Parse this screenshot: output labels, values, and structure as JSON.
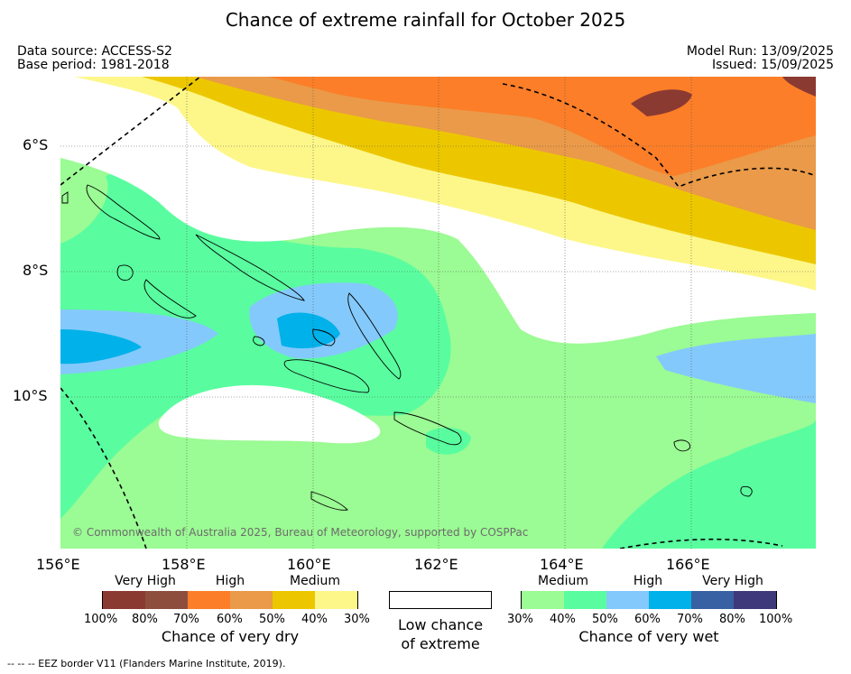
{
  "title": "Chance of extreme rainfall for October 2025",
  "meta": {
    "data_source": "Data source: ACCESS-S2",
    "base_period": "Base period: 1981-2018",
    "model_run": "Model Run: 13/09/2025",
    "issued": "Issued: 15/09/2025"
  },
  "map": {
    "lat_labels": [
      "6°S",
      "8°S",
      "10°S"
    ],
    "lon_labels": [
      "156°E",
      "158°E",
      "160°E",
      "162°E",
      "164°E",
      "166°E"
    ],
    "copyright": "© Commonwealth of Australia 2025, Bureau of Meteorology, supported by COSPPac",
    "colors": {
      "dry_100": "#8b3a32",
      "dry_80": "#8e4e3e",
      "dry_70": "#fc7e28",
      "dry_60": "#ea9a48",
      "dry_50": "#ecc700",
      "dry_40": "#fdf78a",
      "wet_30": "#9bfb94",
      "wet_40": "#59fd9f",
      "wet_50": "#84c9fb",
      "wet_60": "#00b1ea",
      "wet_70": "#3761a3",
      "wet_80": "#3e397a"
    }
  },
  "legend": {
    "dry": {
      "groups": [
        "Very High",
        "High",
        "Medium"
      ],
      "ticks": [
        "100%",
        "80%",
        "70%",
        "60%",
        "50%",
        "40%",
        "30%"
      ],
      "caption": "Chance of very dry"
    },
    "low": {
      "caption_line1": "Low chance",
      "caption_line2": "of extreme"
    },
    "wet": {
      "groups": [
        "Medium",
        "High",
        "Very High"
      ],
      "ticks": [
        "30%",
        "40%",
        "50%",
        "60%",
        "70%",
        "80%",
        "100%"
      ],
      "caption": "Chance of very wet"
    }
  },
  "footer": "--  --  -- EEZ border V11 (Flanders Marine Institute, 2019)."
}
